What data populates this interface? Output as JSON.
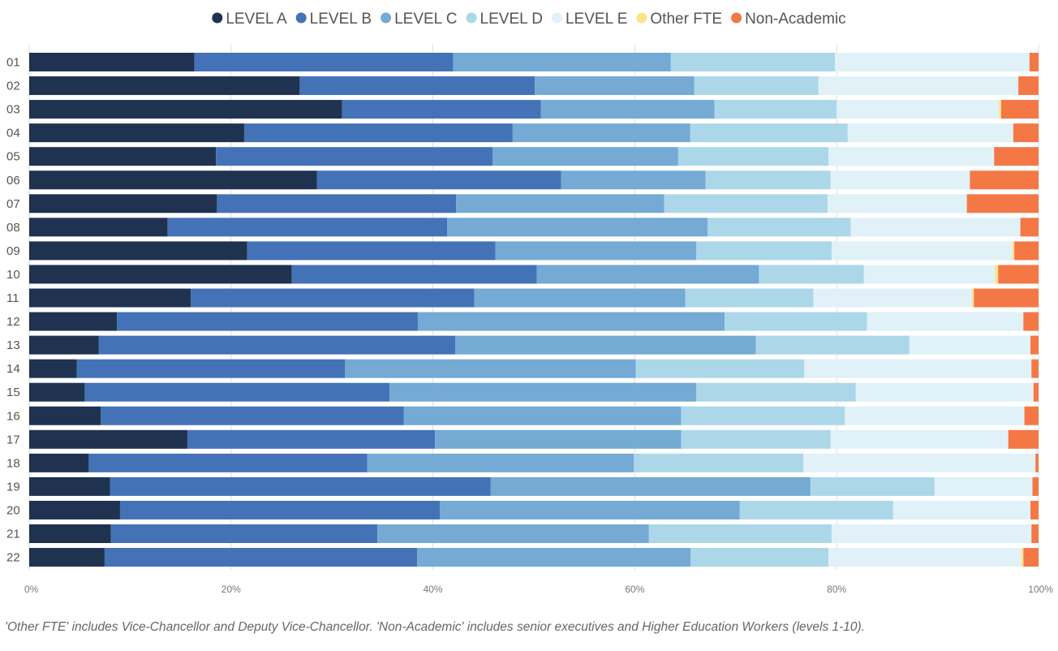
{
  "chart_data": {
    "type": "bar",
    "orientation": "horizontal",
    "stacked": "percent",
    "title": "",
    "xlabel": "",
    "ylabel": "",
    "xlim": [
      0,
      100
    ],
    "x_ticks": [
      "0%",
      "20%",
      "40%",
      "60%",
      "80%",
      "100%"
    ],
    "legend_position": "top",
    "grid": "vertical",
    "categories": [
      "01",
      "02",
      "03",
      "04",
      "05",
      "06",
      "07",
      "08",
      "09",
      "10",
      "11",
      "12",
      "13",
      "14",
      "15",
      "16",
      "17",
      "18",
      "19",
      "20",
      "21",
      "22"
    ],
    "series": [
      {
        "name": "LEVEL A",
        "color": "#1f3350",
        "values": [
          16.4,
          26.8,
          31.0,
          21.3,
          18.5,
          28.5,
          18.6,
          13.7,
          21.6,
          26.0,
          16.0,
          8.7,
          6.9,
          4.7,
          5.5,
          7.1,
          15.7,
          5.9,
          8.0,
          9.0,
          8.1,
          7.5
        ]
      },
      {
        "name": "LEVEL B",
        "color": "#4472b6",
        "values": [
          25.7,
          23.3,
          19.7,
          26.6,
          27.4,
          24.2,
          23.7,
          27.7,
          24.6,
          24.3,
          28.1,
          29.8,
          35.3,
          26.6,
          30.2,
          30.0,
          24.5,
          27.6,
          37.7,
          31.7,
          26.4,
          31.1
        ]
      },
      {
        "name": "LEVEL C",
        "color": "#74aad4",
        "values": [
          21.6,
          15.8,
          17.2,
          17.6,
          18.4,
          14.3,
          20.6,
          25.8,
          19.9,
          22.0,
          20.9,
          30.4,
          29.8,
          28.8,
          30.4,
          27.5,
          24.4,
          26.4,
          31.7,
          29.7,
          26.9,
          27.2
        ]
      },
      {
        "name": "LEVEL D",
        "color": "#abd7e9",
        "values": [
          16.3,
          12.3,
          12.1,
          15.6,
          14.9,
          12.4,
          16.2,
          14.2,
          13.4,
          10.4,
          12.7,
          14.1,
          15.2,
          16.7,
          15.8,
          16.2,
          14.8,
          16.8,
          12.3,
          15.2,
          18.1,
          13.7
        ]
      },
      {
        "name": "LEVEL E",
        "color": "#e0f1f8",
        "values": [
          19.3,
          19.8,
          16.1,
          16.4,
          16.4,
          13.8,
          13.8,
          16.8,
          17.9,
          13.0,
          15.7,
          15.5,
          12.0,
          22.5,
          17.6,
          17.8,
          17.6,
          23.0,
          9.7,
          13.6,
          19.8,
          19.2
        ]
      },
      {
        "name": "Other FTE",
        "color": "#fde38a",
        "values": [
          0.0,
          0.0,
          0.2,
          0.0,
          0.0,
          0.0,
          0.0,
          0.0,
          0.2,
          0.3,
          0.2,
          0.0,
          0.0,
          0.0,
          0.0,
          0.0,
          0.0,
          0.0,
          0.0,
          0.0,
          0.0,
          0.2
        ]
      },
      {
        "name": "Non-Academic",
        "color": "#f47846",
        "values": [
          0.9,
          2.0,
          3.7,
          2.5,
          4.4,
          6.8,
          7.1,
          1.8,
          2.4,
          4.0,
          6.4,
          1.5,
          0.8,
          0.7,
          0.5,
          1.4,
          3.0,
          0.3,
          0.6,
          0.8,
          0.7,
          1.5
        ]
      }
    ]
  },
  "footnote": "'Other FTE' includes Vice-Chancellor and Deputy Vice-Chancellor. 'Non-Academic' includes senior executives and Higher Education Workers (levels 1-10)."
}
